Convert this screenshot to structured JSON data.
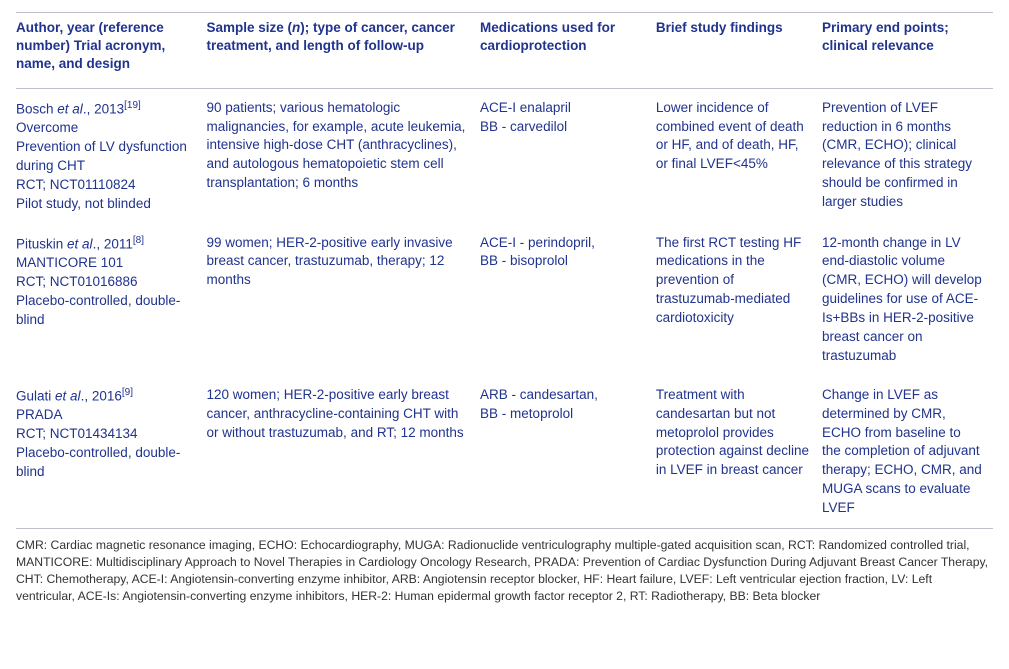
{
  "headers": {
    "author": "Author, year (reference number) Trial acronym, name, and design",
    "sample": "Sample size (n); type of cancer, cancer treatment, and length of follow-up",
    "meds": "Medications used for cardioprotection",
    "find": "Brief study findings",
    "end": "Primary end points; clinical relevance"
  },
  "rows": [
    {
      "author_line1_pre": "Bosch ",
      "author_line1_ital": "et al",
      "author_line1_post": "., 2013",
      "author_ref": "[19]",
      "author_l2": "Overcome",
      "author_l3": "Prevention of LV dysfunction during CHT",
      "author_l4": "RCT; NCT01110824",
      "author_l5": "Pilot study, not blinded",
      "sample": "90 patients; various hematologic malignancies, for example, acute leukemia, intensive high-dose CHT (anthracyclines), and autologous hematopoietic stem cell transplantation; 6 months",
      "meds_l1": "ACE-I enalapril",
      "meds_l2": "BB - carvedilol",
      "find": "Lower incidence of combined event of death or HF, and of death, HF, or final LVEF<45%",
      "end": "Prevention of LVEF reduction in 6 months (CMR, ECHO); clinical relevance of this strategy should be confirmed in larger studies"
    },
    {
      "author_line1_pre": "Pituskin ",
      "author_line1_ital": "et al",
      "author_line1_post": "., 2011",
      "author_ref": "[8]",
      "author_l2": "MANTICORE 101",
      "author_l3": "RCT; NCT01016886",
      "author_l4": "Placebo-controlled, double-blind",
      "author_l5": "",
      "sample": "99 women; HER-2-positive early invasive breast cancer, trastuzumab, therapy; 12 months",
      "meds_l1": "ACE-I - perindopril,",
      "meds_l2": "BB - bisoprolol",
      "find": "The first RCT testing HF medications in the prevention of trastuzumab-mediated cardiotoxicity",
      "end": "12-month change in LV end-diastolic volume (CMR, ECHO) will develop guidelines for use of ACE-Is+BBs in HER-2-positive breast cancer on trastuzumab"
    },
    {
      "author_line1_pre": "Gulati ",
      "author_line1_ital": "et al",
      "author_line1_post": "., 2016",
      "author_ref": "[9]",
      "author_l2": "PRADA",
      "author_l3": "RCT; NCT01434134",
      "author_l4": "Placebo-controlled, double-blind",
      "author_l5": "",
      "sample": "120 women; HER-2-positive early breast cancer, anthracycline-containing CHT with or without trastuzumab, and RT; 12 months",
      "meds_l1": "ARB - candesartan,",
      "meds_l2": "BB - metoprolol",
      "find": "Treatment with candesartan but not metoprolol provides protection against decline in LVEF in breast cancer",
      "end": "Change in LVEF as determined by CMR, ECHO from baseline to the completion of adjuvant therapy; ECHO, CMR, and MUGA scans to evaluate LVEF"
    }
  ],
  "footnote": "CMR: Cardiac magnetic resonance imaging, ECHO: Echocardiography, MUGA: Radionuclide ventriculography multiple-gated acquisition scan, RCT: Randomized controlled trial, MANTICORE: Multidisciplinary Approach to Novel Therapies in Cardiology Oncology Research, PRADA: Prevention of Cardiac Dysfunction During Adjuvant Breast Cancer Therapy, CHT: Chemotherapy, ACE-I: Angiotensin-converting enzyme inhibitor, ARB: Angiotensin receptor blocker, HF: Heart failure, LVEF: Left ventricular ejection fraction, LV: Left ventricular, ACE-Is: Angiotensin-converting enzyme inhibitors, HER-2: Human epidermal growth factor receptor 2, RT: Radiotherapy, BB: Beta blocker"
}
